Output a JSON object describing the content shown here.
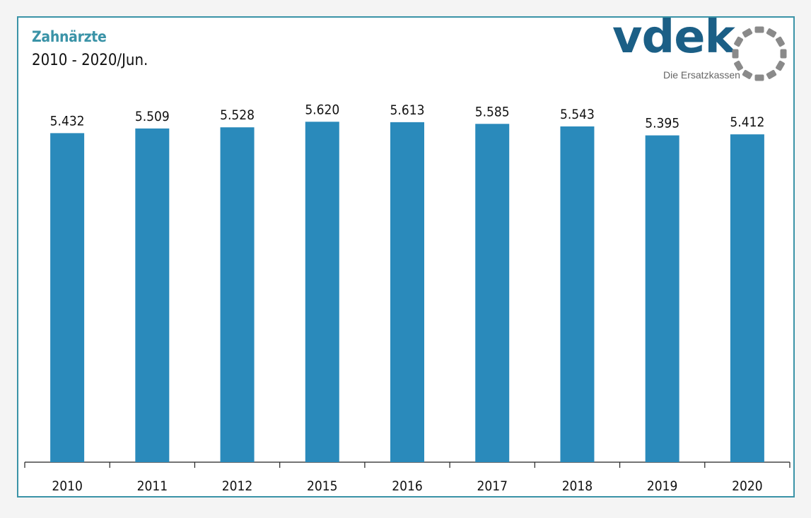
{
  "chart_data": {
    "type": "bar",
    "title": "Zahnärzte",
    "subtitle": "2010 - 2020/Jun.",
    "categories": [
      "2010",
      "2011",
      "2012",
      "2015",
      "2016",
      "2017",
      "2018",
      "2019",
      "2020"
    ],
    "values": [
      5432,
      5509,
      5528,
      5620,
      5613,
      5585,
      5543,
      5395,
      5412
    ],
    "value_labels": [
      "5.432",
      "5.509",
      "5.528",
      "5.620",
      "5.613",
      "5.585",
      "5.543",
      "5.395",
      "5.412"
    ],
    "ylim": [
      0,
      6300
    ],
    "grid": false,
    "legend": "none",
    "bar_color": "#2a8abb"
  },
  "brand": {
    "name": "vdek",
    "tagline": "Die Ersatzkassen",
    "color": "#1b5f86",
    "ring_color": "#8a8a8a"
  },
  "colors": {
    "frame": "#3a93a7",
    "title": "#3a93a7"
  }
}
